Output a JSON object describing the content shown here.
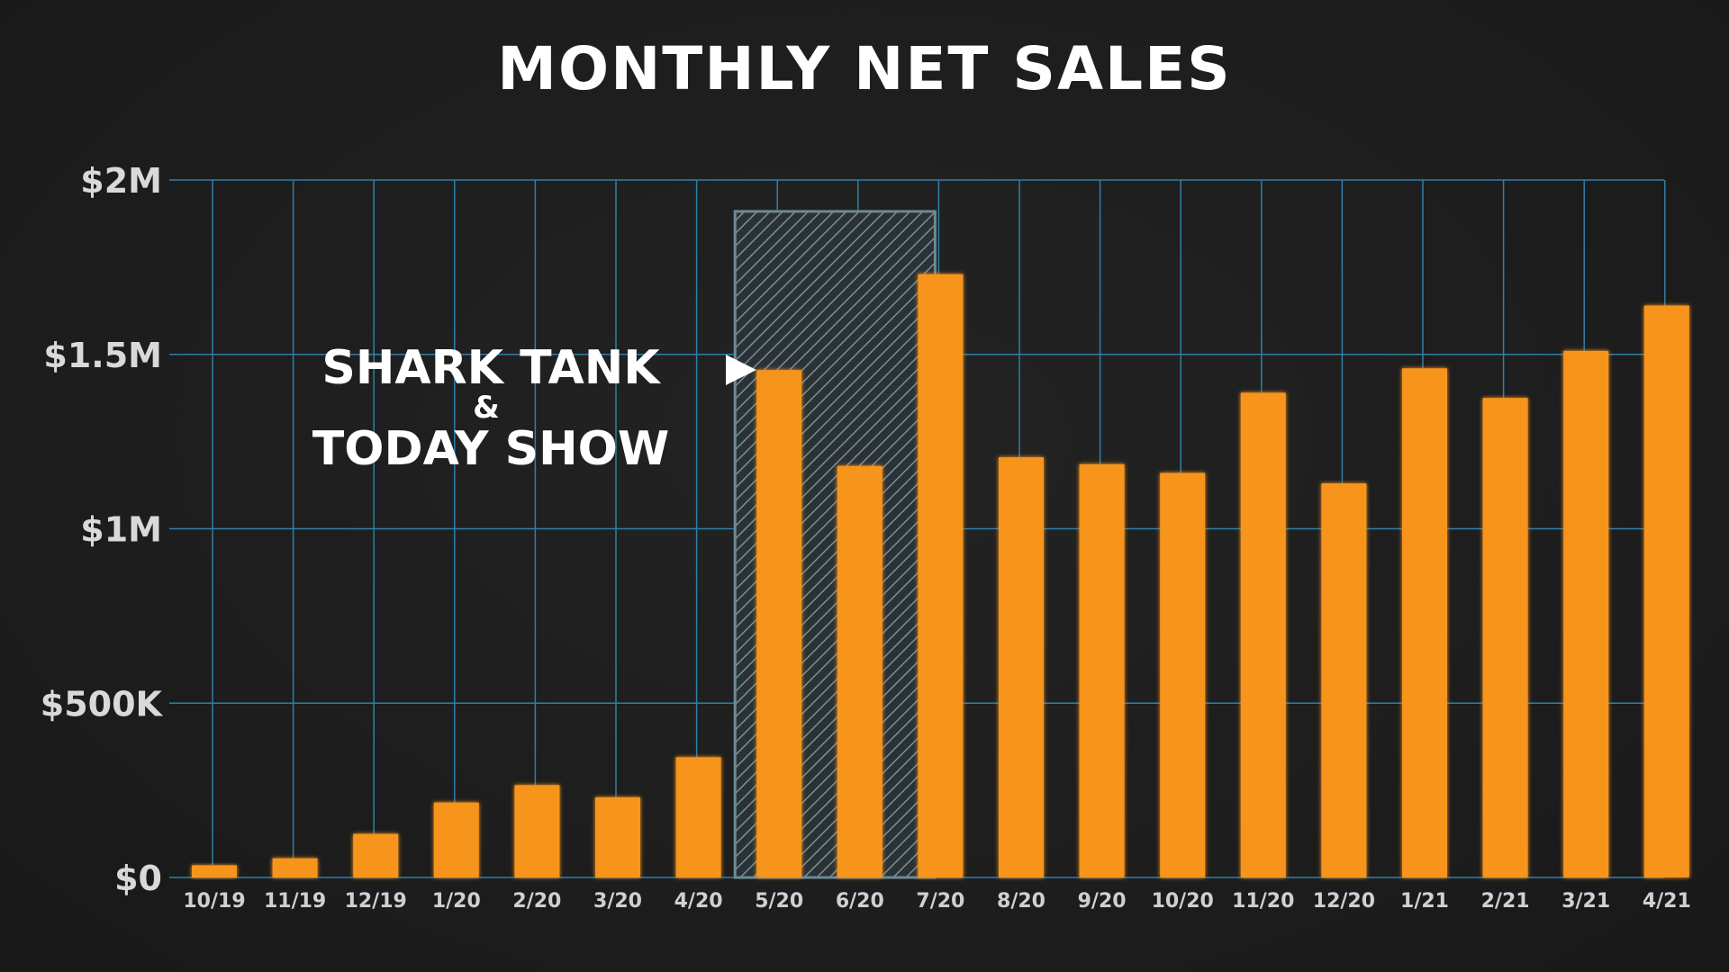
{
  "chart_data": {
    "type": "bar",
    "title": "MONTHLY NET SALES",
    "xlabel": "",
    "ylabel": "",
    "categories": [
      "10/19",
      "11/19",
      "12/19",
      "1/20",
      "2/20",
      "3/20",
      "4/20",
      "5/20",
      "6/20",
      "7/20",
      "8/20",
      "9/20",
      "10/20",
      "11/20",
      "12/20",
      "1/21",
      "2/21",
      "3/21",
      "4/21"
    ],
    "values": [
      35000,
      55000,
      125000,
      215000,
      265000,
      230000,
      345000,
      1455000,
      1180000,
      1730000,
      1205000,
      1185000,
      1160000,
      1390000,
      1130000,
      1460000,
      1375000,
      1510000,
      1640000
    ],
    "ylim": [
      0,
      2000000
    ],
    "yticks": [
      {
        "value": 0,
        "label": "$0"
      },
      {
        "value": 500000,
        "label": "$500K"
      },
      {
        "value": 1000000,
        "label": "$1M"
      },
      {
        "value": 1500000,
        "label": "$1.5M"
      },
      {
        "value": 2000000,
        "label": "$2M"
      }
    ],
    "grid": true,
    "bar_color": "#f7941d",
    "grid_color": "#2f7fa8",
    "highlight": {
      "start_category": "5/20",
      "end_category": "7/20",
      "top_value": 1910000,
      "color": "#6d8a94"
    },
    "annotation": {
      "lines": [
        "SHARK TANK",
        "&",
        "TODAY SHOW"
      ],
      "arrow_icon": "triangle-right-icon"
    }
  }
}
